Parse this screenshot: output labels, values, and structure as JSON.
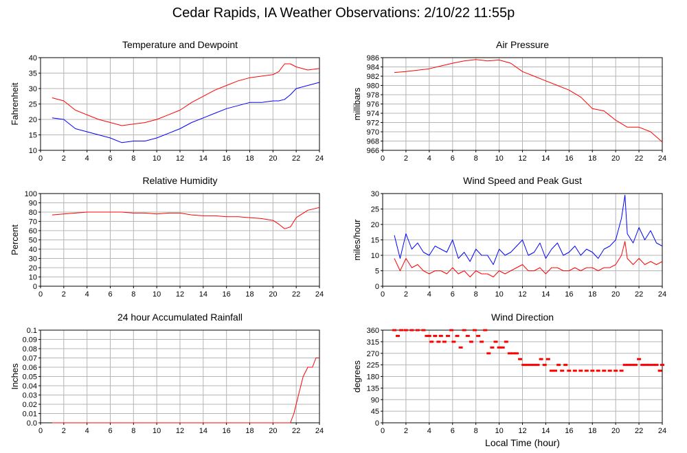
{
  "page": {
    "title": "Cedar Rapids, IA Weather Observations: 2/10/22 11:55p"
  },
  "chart_data": [
    {
      "id": "temp",
      "type": "line",
      "title": "Temperature and Dewpoint",
      "ylabel": "Fahrenheit",
      "xlabel": "",
      "xlim": [
        0,
        24
      ],
      "ylim": [
        10,
        40
      ],
      "xticks": [
        0,
        2,
        4,
        6,
        8,
        10,
        12,
        14,
        16,
        18,
        20,
        22,
        24
      ],
      "yticks": [
        10,
        15,
        20,
        25,
        30,
        35,
        40
      ],
      "grid": true,
      "series": [
        {
          "color": "#ff0000",
          "x": [
            1,
            2,
            3,
            4,
            5,
            6,
            7,
            8,
            9,
            10,
            11,
            12,
            13,
            14,
            15,
            16,
            17,
            18,
            19,
            20,
            20.5,
            21,
            21.5,
            22,
            23,
            24
          ],
          "y": [
            27,
            26,
            23,
            21.5,
            20,
            19,
            18,
            18.5,
            19,
            20,
            21.5,
            23,
            25.5,
            27.5,
            29.5,
            31,
            32.5,
            33.5,
            34,
            34.5,
            35.5,
            38,
            38,
            37,
            36,
            36.5
          ]
        },
        {
          "color": "#0000ff",
          "x": [
            1,
            2,
            3,
            4,
            5,
            6,
            7,
            8,
            9,
            10,
            11,
            12,
            13,
            14,
            15,
            16,
            17,
            18,
            19,
            20,
            20.5,
            21,
            21.5,
            22,
            23,
            24
          ],
          "y": [
            20.5,
            20,
            17,
            16,
            15,
            14,
            12.5,
            13,
            13,
            14,
            15.5,
            17,
            19,
            20.5,
            22,
            23.5,
            24.5,
            25.5,
            25.5,
            26,
            26,
            26.5,
            28,
            30,
            31,
            32
          ]
        }
      ]
    },
    {
      "id": "pressure",
      "type": "line",
      "title": "Air Pressure",
      "ylabel": "millibars",
      "xlabel": "",
      "xlim": [
        0,
        24
      ],
      "ylim": [
        966,
        986
      ],
      "xticks": [
        0,
        2,
        4,
        6,
        8,
        10,
        12,
        14,
        16,
        18,
        20,
        22,
        24
      ],
      "yticks": [
        966,
        968,
        970,
        972,
        974,
        976,
        978,
        980,
        982,
        984,
        986
      ],
      "grid": true,
      "series": [
        {
          "color": "#ff0000",
          "x": [
            1,
            2,
            3,
            4,
            5,
            6,
            7,
            8,
            9,
            10,
            11,
            12,
            13,
            14,
            15,
            16,
            17,
            18,
            19,
            20,
            21,
            22,
            23,
            24
          ],
          "y": [
            982.8,
            983,
            983.3,
            983.6,
            984.2,
            984.8,
            985.3,
            985.6,
            985.3,
            985.5,
            984.8,
            983,
            982,
            981,
            980,
            979,
            977.5,
            975,
            974.5,
            972.5,
            971,
            971,
            970,
            967.8
          ]
        }
      ]
    },
    {
      "id": "humidity",
      "type": "line",
      "title": "Relative Humidity",
      "ylabel": "Percent",
      "xlabel": "",
      "xlim": [
        0,
        24
      ],
      "ylim": [
        0,
        100
      ],
      "xticks": [
        0,
        2,
        4,
        6,
        8,
        10,
        12,
        14,
        16,
        18,
        20,
        22,
        24
      ],
      "yticks": [
        0,
        10,
        20,
        30,
        40,
        50,
        60,
        70,
        80,
        90,
        100
      ],
      "grid": true,
      "series": [
        {
          "color": "#ff0000",
          "x": [
            1,
            2,
            3,
            4,
            5,
            6,
            7,
            8,
            9,
            10,
            11,
            12,
            13,
            14,
            15,
            16,
            17,
            18,
            19,
            20,
            20.5,
            21,
            21.5,
            22,
            23,
            24
          ],
          "y": [
            77,
            78,
            79,
            80,
            80,
            80,
            80,
            79,
            79,
            78,
            79,
            79,
            77,
            76,
            76,
            75,
            75,
            74,
            73,
            71,
            67,
            62,
            64,
            74,
            82,
            85
          ]
        }
      ]
    },
    {
      "id": "wind",
      "type": "line",
      "title": "Wind Speed and Peak Gust",
      "ylabel": "miles/hour",
      "xlabel": "",
      "xlim": [
        0,
        24
      ],
      "ylim": [
        0,
        30
      ],
      "xticks": [
        0,
        2,
        4,
        6,
        8,
        10,
        12,
        14,
        16,
        18,
        20,
        22,
        24
      ],
      "yticks": [
        0,
        5,
        10,
        15,
        20,
        25,
        30
      ],
      "grid": true,
      "series": [
        {
          "color": "#0000ff",
          "x": [
            1,
            1.5,
            2,
            2.5,
            3,
            3.5,
            4,
            4.5,
            5,
            5.5,
            6,
            6.5,
            7,
            7.5,
            8,
            8.5,
            9,
            9.5,
            10,
            10.5,
            11,
            11.5,
            12,
            12.5,
            13,
            13.5,
            14,
            14.5,
            15,
            15.5,
            16,
            16.5,
            17,
            17.5,
            18,
            18.5,
            19,
            19.5,
            20,
            20.5,
            20.8,
            21,
            21.5,
            22,
            22.5,
            23,
            23.5,
            24
          ],
          "y": [
            16.5,
            9,
            17,
            12,
            14,
            11,
            10,
            13,
            12,
            11,
            15,
            9,
            11,
            8,
            12,
            10,
            10,
            7,
            12,
            10,
            11,
            13,
            15,
            10,
            11,
            14,
            9,
            12,
            14,
            10,
            11,
            13,
            10,
            12,
            11,
            9,
            12,
            13,
            15,
            22,
            29.5,
            17,
            14,
            19,
            15,
            18,
            14,
            13
          ]
        },
        {
          "color": "#ff0000",
          "x": [
            1,
            1.5,
            2,
            2.5,
            3,
            3.5,
            4,
            4.5,
            5,
            5.5,
            6,
            6.5,
            7,
            7.5,
            8,
            8.5,
            9,
            9.5,
            10,
            10.5,
            11,
            11.5,
            12,
            12.5,
            13,
            13.5,
            14,
            14.5,
            15,
            15.5,
            16,
            16.5,
            17,
            17.5,
            18,
            18.5,
            19,
            19.5,
            20,
            20.5,
            20.8,
            21,
            21.5,
            22,
            22.5,
            23,
            23.5,
            24
          ],
          "y": [
            9,
            5,
            9,
            6,
            7,
            5,
            4,
            5,
            5,
            4,
            6,
            4,
            5,
            3,
            5,
            4,
            4,
            3,
            5,
            4,
            5,
            6,
            7,
            5,
            5,
            6,
            4,
            6,
            6,
            5,
            5,
            6,
            5,
            6,
            6,
            5,
            6,
            6,
            7,
            10,
            14.5,
            9,
            7,
            9,
            7,
            8,
            7,
            8
          ]
        }
      ]
    },
    {
      "id": "rain",
      "type": "line",
      "title": "24 hour Accumulated Rainfall",
      "ylabel": "Inches",
      "xlabel": "",
      "xlim": [
        0,
        24
      ],
      "ylim": [
        0,
        0.1
      ],
      "xticks": [
        0,
        2,
        4,
        6,
        8,
        10,
        12,
        14,
        16,
        18,
        20,
        22,
        24
      ],
      "yticks": [
        0.0,
        0.01,
        0.02,
        0.03,
        0.04,
        0.05,
        0.06,
        0.07,
        0.08,
        0.09,
        0.1
      ],
      "ytick_labels": [
        "0.0",
        "0.01",
        "0.02",
        "0.03",
        "0.04",
        "0.05",
        "0.06",
        "0.07",
        "0.08",
        "0.09",
        "0.1"
      ],
      "grid": true,
      "series": [
        {
          "color": "#ff0000",
          "x": [
            1,
            21.5,
            21.8,
            22.2,
            22.6,
            23,
            23.4,
            23.7,
            24
          ],
          "y": [
            0,
            0,
            0.01,
            0.03,
            0.05,
            0.06,
            0.06,
            0.07,
            0.07
          ]
        }
      ]
    },
    {
      "id": "winddir",
      "type": "scatter",
      "title": "Wind Direction",
      "ylabel": "degrees",
      "xlabel": "Local Time (hour)",
      "xlim": [
        0,
        24
      ],
      "ylim": [
        0,
        360
      ],
      "xticks": [
        0,
        2,
        4,
        6,
        8,
        10,
        12,
        14,
        16,
        18,
        20,
        22,
        24
      ],
      "yticks": [
        0,
        45,
        90,
        135,
        180,
        225,
        270,
        315,
        360
      ],
      "grid": true,
      "series": [
        {
          "color": "#ff0000",
          "x": [
            1,
            1.3,
            1.6,
            2,
            2.5,
            3,
            3.5,
            3.8,
            4,
            4.2,
            4.5,
            4.8,
            5,
            5.3,
            5.6,
            5.9,
            6.1,
            6.4,
            6.7,
            7,
            7.3,
            7.6,
            7.9,
            8.2,
            8.5,
            8.8,
            9.1,
            9.4,
            9.7,
            10,
            10.3,
            10.6,
            10.9,
            11.2,
            11.5,
            11.8,
            12.1,
            12.4,
            12.7,
            13,
            13.3,
            13.6,
            13.9,
            14.2,
            14.5,
            14.8,
            15.1,
            15.4,
            15.7,
            16,
            16.5,
            17,
            17.5,
            18,
            18.5,
            19,
            19.5,
            20,
            20.5,
            20.8,
            21.1,
            21.4,
            21.7,
            22,
            22.3,
            22.6,
            22.9,
            23.2,
            23.5,
            23.8,
            24
          ],
          "y": [
            360,
            337.5,
            360,
            360,
            360,
            360,
            360,
            337.5,
            337.5,
            315,
            337.5,
            315,
            337.5,
            315,
            337.5,
            360,
            315,
            337.5,
            292.5,
            360,
            337.5,
            315,
            360,
            337.5,
            315,
            360,
            270,
            292.5,
            315,
            292.5,
            292.5,
            315,
            270,
            270,
            270,
            247.5,
            225,
            225,
            225,
            225,
            225,
            247.5,
            225,
            247.5,
            202.5,
            202.5,
            225,
            202.5,
            225,
            202.5,
            202.5,
            202.5,
            202.5,
            202.5,
            202.5,
            202.5,
            202.5,
            202.5,
            202.5,
            225,
            225,
            225,
            225,
            247.5,
            225,
            225,
            225,
            225,
            225,
            202.5,
            225
          ]
        }
      ]
    }
  ]
}
